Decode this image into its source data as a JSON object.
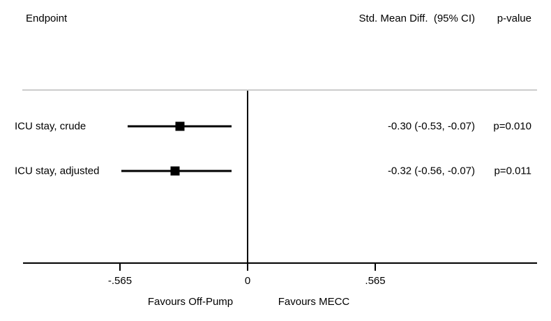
{
  "header": {
    "endpoint_label": "Endpoint",
    "effect_label": "Std. Mean Diff.  (95% CI)",
    "pvalue_label": "p-value"
  },
  "chart_data": {
    "type": "forest",
    "title": "",
    "rows": [
      {
        "label": "ICU stay, crude",
        "estimate": -0.3,
        "ci_low": -0.53,
        "ci_high": -0.07,
        "estimate_text": "-0.30 (-0.53, -0.07)",
        "p_text": "p=0.010"
      },
      {
        "label": "ICU stay, adjusted",
        "estimate": -0.32,
        "ci_low": -0.56,
        "ci_high": -0.07,
        "estimate_text": "-0.32 (-0.56, -0.07)",
        "p_text": "p=0.011"
      }
    ],
    "axis": {
      "ticks": [
        -0.565,
        0,
        0.565
      ],
      "tick_labels": [
        "-.565",
        "0",
        ".565"
      ],
      "xlim": [
        -0.995,
        1.28
      ],
      "zero_line": 0,
      "left_label": "Favours Off-Pump",
      "right_label": "Favours MECC"
    }
  },
  "colors": {
    "background": "#ffffff",
    "separator": "#cccccc",
    "axis": "#000000",
    "marker": "#000000",
    "text": "#000000"
  }
}
